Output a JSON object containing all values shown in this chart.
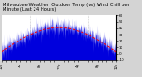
{
  "title": "Milwaukee Weather  Outdoor Temp (vs) Wind Chill per Minute (Last 24 Hours)",
  "title_fontsize": 3.8,
  "bg_color": "#d4d4d4",
  "plot_bg_color": "#ffffff",
  "bar_color": "#0000dd",
  "line_color": "#ff0000",
  "n_points": 1440,
  "y_min": -10,
  "y_max": 60,
  "yticks": [
    60,
    50,
    40,
    30,
    20,
    10,
    0,
    -10
  ],
  "ytick_labels": [
    "60",
    "50",
    "40",
    "30",
    "20",
    "10",
    "0",
    "-10"
  ],
  "xlabel_fontsize": 2.8,
  "ylabel_fontsize": 3.0,
  "grid_color": "#999999",
  "n_vgrid": 3,
  "seed": 17
}
